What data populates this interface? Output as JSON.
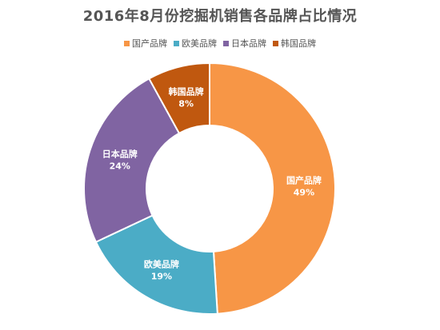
{
  "chart_data": {
    "type": "pie",
    "title": "2016年8月份挖掘机销售各品牌占比情况",
    "donut": true,
    "legend_position": "top",
    "categories": [
      "国产品牌",
      "欧美品牌",
      "日本品牌",
      "韩国品牌"
    ],
    "values": [
      49,
      19,
      24,
      8
    ],
    "value_labels": [
      "49%",
      "19%",
      "24%",
      "8%"
    ],
    "colors": [
      "#F79646",
      "#4BACC6",
      "#8064A2",
      "#C0580F"
    ]
  }
}
